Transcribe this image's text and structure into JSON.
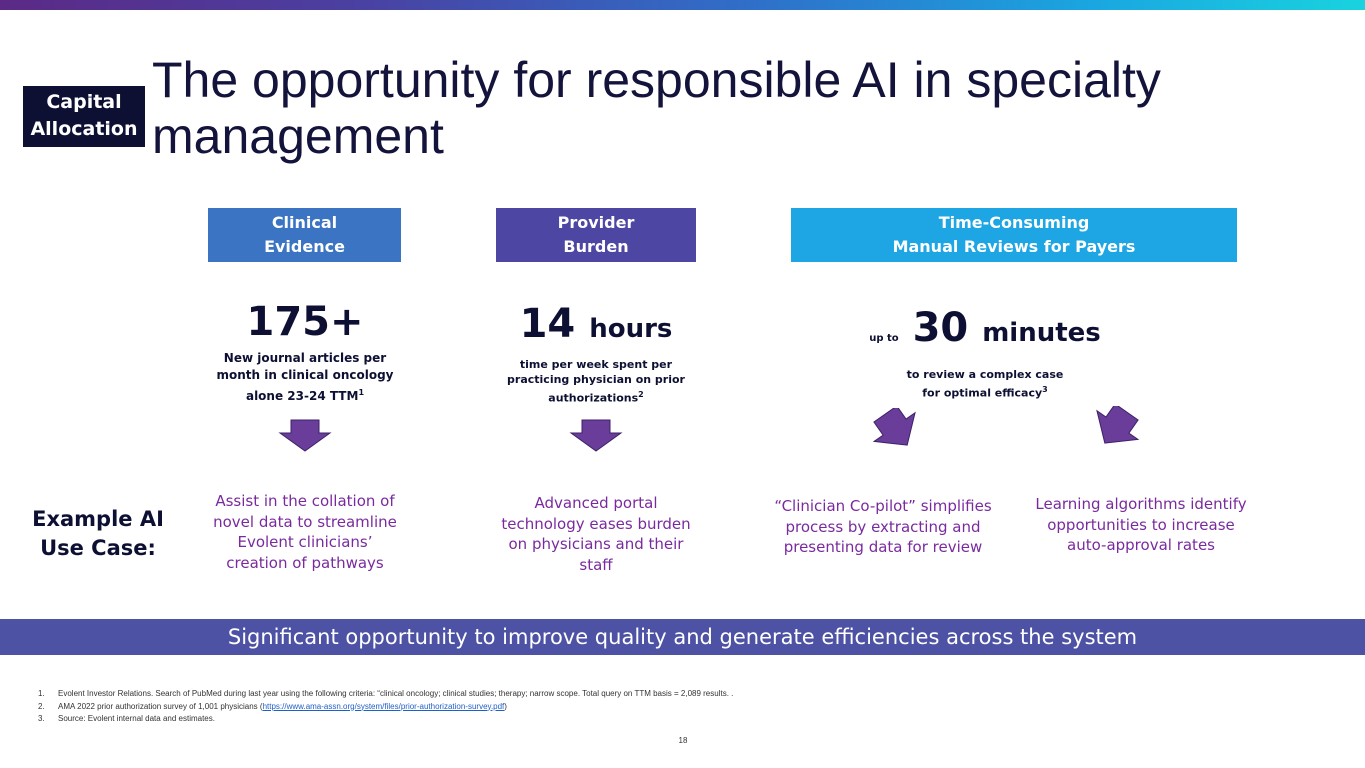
{
  "section_badge": "Capital Allocation",
  "title": "The opportunity for responsible AI in specialty management",
  "pillars": [
    {
      "label_line1": "Clinical",
      "label_line2": "Evidence"
    },
    {
      "label_line1": "Provider",
      "label_line2": "Burden"
    },
    {
      "label_line1": "Time-Consuming",
      "label_line2": "Manual Reviews for Payers"
    }
  ],
  "stats": [
    {
      "value": "175+",
      "desc_line1": "New journal articles per",
      "desc_line2": "month in clinical oncology",
      "desc_line3": "alone 23-24 TTM",
      "footnote": "1"
    },
    {
      "value": "14",
      "unit": "hours",
      "desc_line1": "time per week spent per",
      "desc_line2": "practicing physician on prior",
      "desc_line3": "authorizations",
      "footnote": "2"
    },
    {
      "prefix": "up to",
      "value": "30",
      "unit": "minutes",
      "desc_line1": "to review a complex case",
      "desc_line2": "for optimal efficacy",
      "footnote": "3"
    }
  ],
  "example_label": "Example AI Use Case:",
  "use_cases": [
    "Assist in the collation of novel data to streamline Evolent clinicians’ creation of pathways",
    "Advanced portal technology eases burden on physicians and their staff",
    "“Clinician Co-pilot” simplifies process by extracting and presenting data for review",
    "Learning algorithms identify opportunities to increase auto-approval rates"
  ],
  "banner": "Significant opportunity to improve quality and generate efficiencies across the system",
  "footnotes": [
    {
      "num": "1.",
      "text": "Evolent Investor Relations.  Search of PubMed  during last year using the following criteria: “clinical oncology; clinical studies; therapy; narrow scope.  Total query on TTM basis = 2,089 results. ."
    },
    {
      "num": "2.",
      "text_before": "AMA 2022 prior authorization survey of 1,001 physicians (",
      "link": "https://www.ama-assn.org/system/files/prior-authorization-survey.pdf",
      "text_after": ")"
    },
    {
      "num": "3.",
      "text": "Source: Evolent internal data and estimates."
    }
  ],
  "page_number": "18",
  "colors": {
    "navy": "#0d1033",
    "pillar_blue": "#3a74c3",
    "pillar_indigo": "#4d46a3",
    "pillar_cyan": "#1da6e3",
    "arrow_purple": "#6a3d9a",
    "use_case_purple": "#7a2a9e",
    "banner": "#4d52a5"
  }
}
